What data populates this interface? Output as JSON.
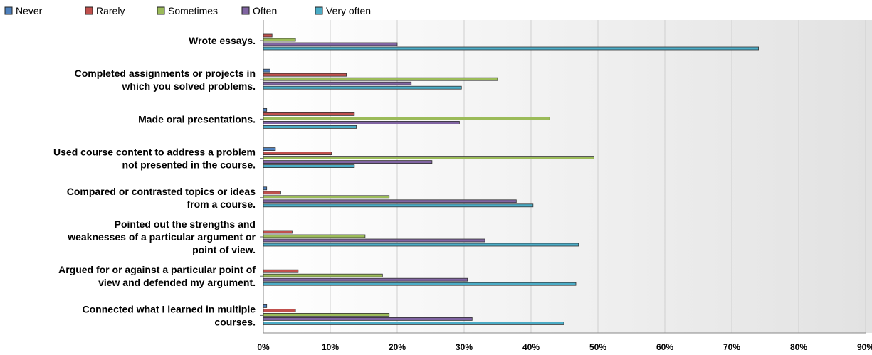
{
  "chart_data": {
    "type": "bar",
    "orientation": "horizontal",
    "categories": [
      [
        "Wrote essays."
      ],
      [
        "Completed assignments or projects in",
        "which you solved problems."
      ],
      [
        "Made oral presentations."
      ],
      [
        "Used course content to address a problem",
        "not presented in the course."
      ],
      [
        "Compared or contrasted topics or ideas",
        "from a course."
      ],
      [
        "Pointed out the strengths and",
        "weaknesses of a particular argument or",
        "point of view."
      ],
      [
        "Argued for or against a particular point of",
        "view and defended my argument."
      ],
      [
        "Connected what I learned in multiple",
        "courses."
      ]
    ],
    "series": [
      {
        "name": "Never",
        "color": "#4F81BD",
        "values": [
          0,
          1.0,
          0.5,
          1.8,
          0.5,
          0,
          0,
          0.5
        ]
      },
      {
        "name": "Rarely",
        "color": "#C0504D",
        "values": [
          1.3,
          12.4,
          13.6,
          10.2,
          2.6,
          4.3,
          5.2,
          4.8
        ]
      },
      {
        "name": "Sometimes",
        "color": "#9BBB59",
        "values": [
          4.8,
          35.0,
          42.8,
          49.4,
          18.8,
          15.2,
          17.8,
          18.8
        ]
      },
      {
        "name": "Often",
        "color": "#8064A2",
        "values": [
          20.0,
          22.1,
          29.3,
          25.2,
          37.8,
          33.1,
          30.5,
          31.2
        ]
      },
      {
        "name": "Very often",
        "color": "#4BACC6",
        "values": [
          74.0,
          29.6,
          13.9,
          13.6,
          40.3,
          47.1,
          46.7,
          44.9
        ]
      }
    ],
    "x_ticks": [
      "0%",
      "10%",
      "20%",
      "30%",
      "40%",
      "50%",
      "60%",
      "70%",
      "80%",
      "90%"
    ],
    "xlim": [
      0,
      90
    ],
    "grid": true,
    "legend_position": "top-left"
  }
}
